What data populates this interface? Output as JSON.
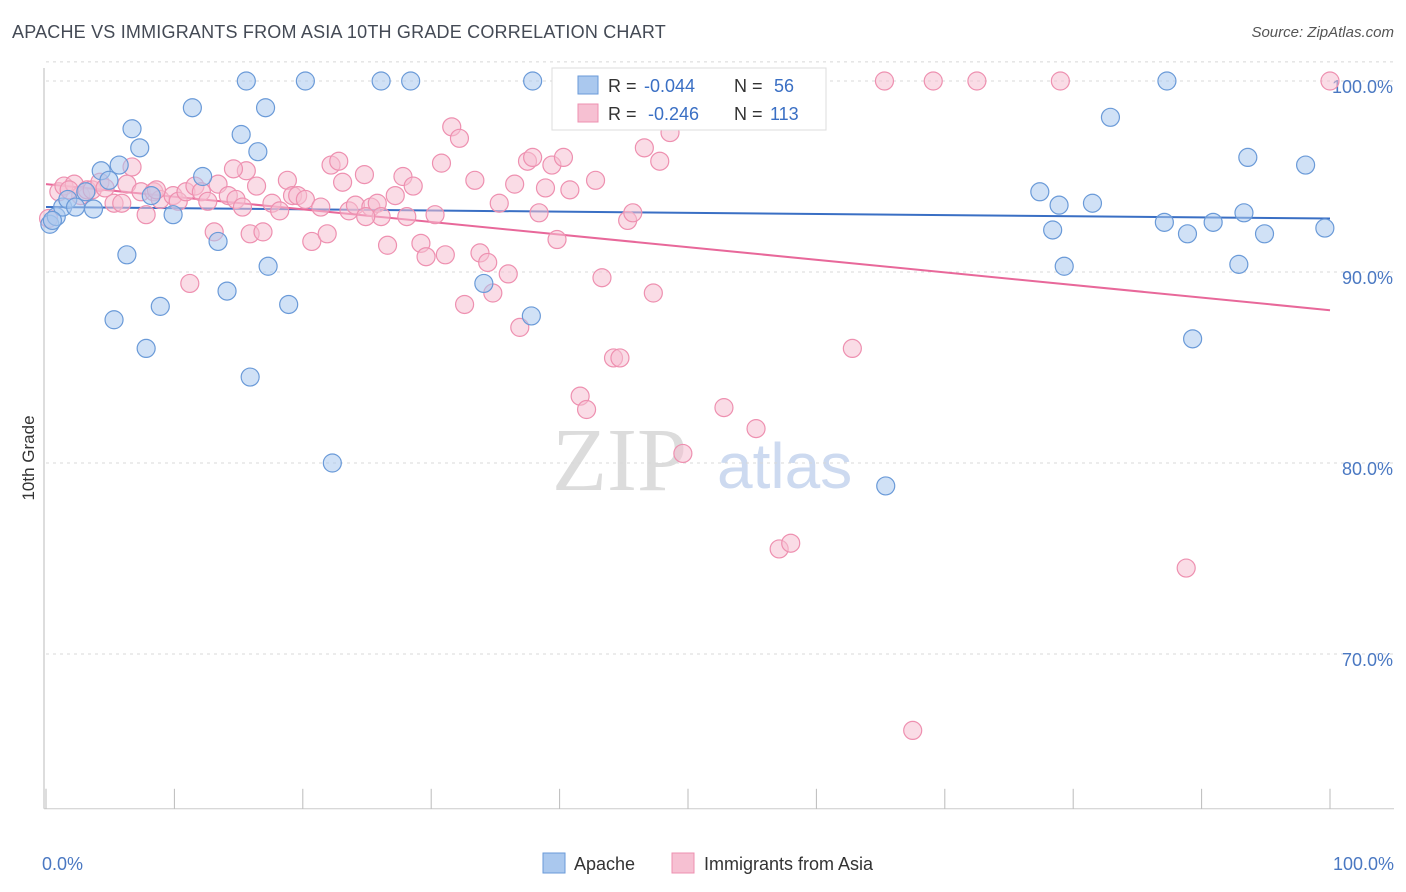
{
  "header": {
    "title": "APACHE VS IMMIGRANTS FROM ASIA 10TH GRADE CORRELATION CHART",
    "source": "Source: ZipAtlas.com"
  },
  "legend_box": {
    "apache": {
      "r_label": "R = ",
      "r_value": "-0.044",
      "n_label": "N = ",
      "n_value": "56"
    },
    "asia": {
      "r_label": "R = ",
      "r_value": "-0.246",
      "n_label": "N = ",
      "n_value": "113"
    }
  },
  "bottom_legend": {
    "apache": "Apache",
    "asia": "Immigrants from Asia"
  },
  "watermark": {
    "zip": "ZIP",
    "atlas": "atlas"
  },
  "colors": {
    "apache_fill": "#aac8ee",
    "apache_stroke": "#6a9ad8",
    "apache_line": "#3a6fc4",
    "asia_fill": "#f6c0d2",
    "asia_stroke": "#ee90b0",
    "asia_line": "#e8689a",
    "axis_text": "#4a78c2",
    "grid": "#d8d8d8"
  },
  "chart_data": {
    "type": "scatter",
    "title": "APACHE VS IMMIGRANTS FROM ASIA 10TH GRADE CORRELATION CHART",
    "xlabel": "",
    "ylabel": "10th Grade",
    "xlim": [
      0,
      100
    ],
    "ylim": [
      62,
      101.2
    ],
    "x_tick_labels": [
      "0.0%",
      "100.0%"
    ],
    "y_ticks": [
      70,
      80,
      90,
      100
    ],
    "y_tick_labels": [
      "70.0%",
      "80.0%",
      "90.0%",
      "100.0%"
    ],
    "grid": true,
    "legend_position": "top-center",
    "series": [
      {
        "name": "Apache",
        "R": -0.044,
        "N": 56,
        "trend": {
          "x": [
            0,
            100
          ],
          "y": [
            93.4,
            92.8
          ]
        },
        "points": [
          [
            0.3,
            92.5
          ],
          [
            0.8,
            92.9
          ],
          [
            1.3,
            93.4
          ],
          [
            1.7,
            93.8
          ],
          [
            2.3,
            93.4
          ],
          [
            3.1,
            94.2
          ],
          [
            3.7,
            93.3
          ],
          [
            4.3,
            95.3
          ],
          [
            4.9,
            94.8
          ],
          [
            5.3,
            87.5
          ],
          [
            5.7,
            95.6
          ],
          [
            6.3,
            90.9
          ],
          [
            6.7,
            97.5
          ],
          [
            7.3,
            96.5
          ],
          [
            7.8,
            86.0
          ],
          [
            8.2,
            94.0
          ],
          [
            8.9,
            88.2
          ],
          [
            9.9,
            93.0
          ],
          [
            11.4,
            98.6
          ],
          [
            12.2,
            95.0
          ],
          [
            13.4,
            91.6
          ],
          [
            14.1,
            89.0
          ],
          [
            15.2,
            97.2
          ],
          [
            15.6,
            100.0
          ],
          [
            15.9,
            84.5
          ],
          [
            16.5,
            96.3
          ],
          [
            17.1,
            98.6
          ],
          [
            17.3,
            90.3
          ],
          [
            18.9,
            88.3
          ],
          [
            20.2,
            100.0
          ],
          [
            22.3,
            80.0
          ],
          [
            26.1,
            100.0
          ],
          [
            28.4,
            100.0
          ],
          [
            34.1,
            89.4
          ],
          [
            37.8,
            87.7
          ],
          [
            37.9,
            100.0
          ],
          [
            42.4,
            100.0
          ],
          [
            65.4,
            78.8
          ],
          [
            77.4,
            94.2
          ],
          [
            78.4,
            92.2
          ],
          [
            78.9,
            93.5
          ],
          [
            79.3,
            90.3
          ],
          [
            81.5,
            93.6
          ],
          [
            82.9,
            98.1
          ],
          [
            87.1,
            92.6
          ],
          [
            87.3,
            100.0
          ],
          [
            88.9,
            92.0
          ],
          [
            89.3,
            86.5
          ],
          [
            90.9,
            92.6
          ],
          [
            92.9,
            90.4
          ],
          [
            93.3,
            93.1
          ],
          [
            93.6,
            96.0
          ],
          [
            94.9,
            92.0
          ],
          [
            98.1,
            95.6
          ],
          [
            99.6,
            92.3
          ],
          [
            0.5,
            92.7
          ]
        ]
      },
      {
        "name": "Immigrants from Asia",
        "R": -0.246,
        "N": 113,
        "trend": {
          "x": [
            0,
            100
          ],
          "y": [
            94.6,
            88.0
          ]
        },
        "points": [
          [
            0.2,
            92.8
          ],
          [
            1.0,
            94.2
          ],
          [
            1.4,
            94.5
          ],
          [
            2.2,
            94.6
          ],
          [
            2.7,
            94.0
          ],
          [
            3.2,
            94.3
          ],
          [
            3.6,
            94.3
          ],
          [
            4.2,
            94.7
          ],
          [
            4.6,
            94.4
          ],
          [
            5.3,
            93.6
          ],
          [
            5.9,
            93.6
          ],
          [
            6.3,
            94.6
          ],
          [
            6.7,
            95.5
          ],
          [
            7.4,
            94.2
          ],
          [
            7.8,
            93.0
          ],
          [
            8.4,
            94.2
          ],
          [
            8.9,
            93.8
          ],
          [
            9.9,
            94.0
          ],
          [
            10.3,
            93.7
          ],
          [
            10.9,
            94.2
          ],
          [
            11.2,
            89.4
          ],
          [
            11.6,
            94.5
          ],
          [
            12.1,
            94.2
          ],
          [
            12.6,
            93.7
          ],
          [
            13.1,
            92.1
          ],
          [
            13.4,
            94.6
          ],
          [
            14.2,
            94.0
          ],
          [
            14.8,
            93.8
          ],
          [
            15.3,
            93.4
          ],
          [
            15.6,
            95.3
          ],
          [
            15.9,
            92.0
          ],
          [
            16.4,
            94.5
          ],
          [
            16.9,
            92.1
          ],
          [
            17.6,
            93.6
          ],
          [
            18.2,
            93.2
          ],
          [
            18.8,
            94.8
          ],
          [
            19.2,
            94.0
          ],
          [
            19.6,
            94.0
          ],
          [
            20.2,
            93.8
          ],
          [
            20.7,
            91.6
          ],
          [
            21.4,
            93.4
          ],
          [
            21.9,
            92.0
          ],
          [
            22.2,
            95.6
          ],
          [
            22.8,
            95.8
          ],
          [
            23.1,
            94.7
          ],
          [
            23.6,
            93.2
          ],
          [
            24.1,
            93.5
          ],
          [
            24.8,
            95.1
          ],
          [
            25.3,
            93.4
          ],
          [
            25.8,
            93.6
          ],
          [
            26.1,
            92.9
          ],
          [
            26.6,
            91.4
          ],
          [
            27.2,
            94.0
          ],
          [
            27.8,
            95.0
          ],
          [
            28.1,
            92.9
          ],
          [
            28.6,
            94.5
          ],
          [
            29.2,
            91.5
          ],
          [
            29.6,
            90.8
          ],
          [
            30.3,
            93.0
          ],
          [
            30.8,
            95.7
          ],
          [
            31.1,
            90.9
          ],
          [
            31.6,
            97.6
          ],
          [
            32.2,
            97.0
          ],
          [
            32.6,
            88.3
          ],
          [
            33.4,
            94.8
          ],
          [
            33.8,
            91.0
          ],
          [
            34.4,
            90.5
          ],
          [
            34.8,
            88.9
          ],
          [
            35.3,
            93.6
          ],
          [
            36.0,
            89.9
          ],
          [
            36.5,
            94.6
          ],
          [
            36.9,
            87.1
          ],
          [
            37.5,
            95.8
          ],
          [
            37.9,
            96.0
          ],
          [
            38.4,
            93.1
          ],
          [
            38.9,
            94.4
          ],
          [
            39.4,
            95.6
          ],
          [
            39.8,
            91.7
          ],
          [
            40.3,
            96.0
          ],
          [
            40.8,
            94.3
          ],
          [
            41.6,
            83.5
          ],
          [
            42.1,
            82.8
          ],
          [
            42.8,
            94.8
          ],
          [
            43.3,
            89.7
          ],
          [
            44.2,
            85.5
          ],
          [
            44.7,
            85.5
          ],
          [
            45.3,
            92.7
          ],
          [
            45.7,
            93.1
          ],
          [
            46.6,
            96.5
          ],
          [
            47.3,
            88.9
          ],
          [
            47.8,
            95.8
          ],
          [
            48.6,
            97.3
          ],
          [
            49.0,
            100.0
          ],
          [
            49.6,
            80.5
          ],
          [
            50.4,
            98.2
          ],
          [
            51.3,
            100.0
          ],
          [
            52.8,
            82.9
          ],
          [
            53.4,
            100.0
          ],
          [
            55.3,
            81.8
          ],
          [
            57.1,
            75.5
          ],
          [
            58.0,
            75.8
          ],
          [
            62.8,
            86.0
          ],
          [
            65.3,
            100.0
          ],
          [
            67.5,
            66.0
          ],
          [
            69.1,
            100.0
          ],
          [
            72.5,
            100.0
          ],
          [
            79.0,
            100.0
          ],
          [
            88.8,
            74.5
          ],
          [
            100.0,
            100.0
          ],
          [
            1.8,
            94.3
          ],
          [
            8.6,
            94.3
          ],
          [
            14.6,
            95.4
          ],
          [
            24.9,
            92.9
          ]
        ]
      }
    ]
  }
}
